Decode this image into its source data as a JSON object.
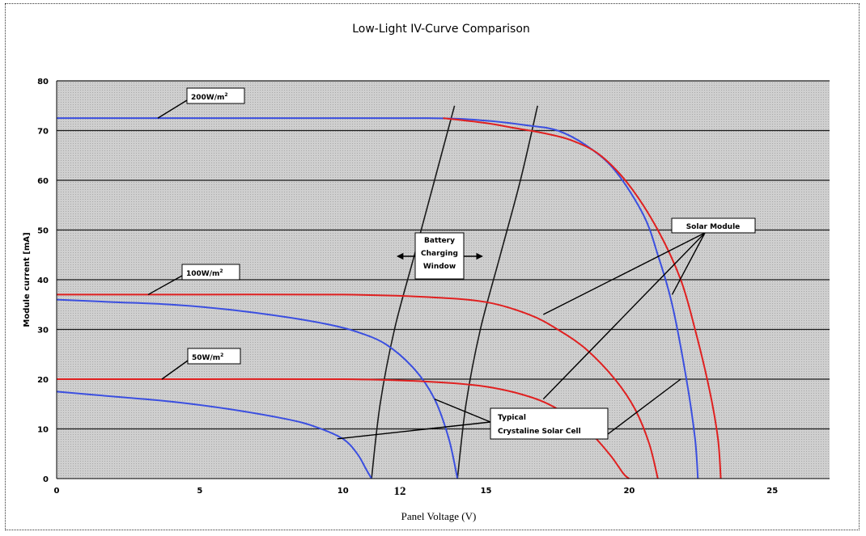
{
  "chart_data": {
    "type": "line",
    "title": "Low-Light IV-Curve Comparison",
    "xlabel": "Panel Voltage (V)",
    "ylabel": "Module current [mA]",
    "xlim": [
      0,
      27
    ],
    "ylim": [
      0,
      80
    ],
    "x_ticks": [
      "0",
      "5",
      "10",
      "15",
      "20",
      "25"
    ],
    "y_ticks": [
      "0",
      "10",
      "20",
      "30",
      "40",
      "50",
      "60",
      "70",
      "80"
    ],
    "extra_x_label": "12",
    "grid": "horizontal",
    "series": [
      {
        "group": "Typical Crystaline Solar Cell",
        "irradiance": "200W/m²",
        "color": "#3b4fe0",
        "points": [
          [
            0,
            72.5
          ],
          [
            8,
            72.5
          ],
          [
            13,
            72.5
          ],
          [
            15,
            72
          ],
          [
            16.5,
            71
          ],
          [
            17.5,
            70
          ],
          [
            18.5,
            67
          ],
          [
            19.5,
            62
          ],
          [
            20.5,
            53
          ],
          [
            21,
            45
          ],
          [
            21.5,
            35
          ],
          [
            22,
            20
          ],
          [
            22.3,
            8
          ],
          [
            22.4,
            0
          ]
        ]
      },
      {
        "group": "Solar Module",
        "irradiance": "200W/m²",
        "color": "#e02020",
        "points": [
          [
            13.5,
            72.5
          ],
          [
            15,
            71.5
          ],
          [
            16,
            70.5
          ],
          [
            17,
            69.5
          ],
          [
            18,
            68
          ],
          [
            19,
            65
          ],
          [
            20,
            59
          ],
          [
            21,
            50
          ],
          [
            21.8,
            40
          ],
          [
            22.3,
            30
          ],
          [
            22.8,
            18
          ],
          [
            23.1,
            8
          ],
          [
            23.2,
            0
          ]
        ]
      },
      {
        "group": "Typical Crystaline Solar Cell",
        "irradiance": "100W/m²",
        "color": "#3b4fe0",
        "points": [
          [
            0,
            36
          ],
          [
            2,
            35.5
          ],
          [
            4,
            35
          ],
          [
            6,
            34
          ],
          [
            8,
            32.5
          ],
          [
            9.5,
            31
          ],
          [
            10.5,
            29.5
          ],
          [
            11.5,
            27
          ],
          [
            12.5,
            22
          ],
          [
            13.2,
            16
          ],
          [
            13.7,
            8
          ],
          [
            14,
            0
          ]
        ]
      },
      {
        "group": "Solar Module",
        "irradiance": "100W/m²",
        "color": "#e02020",
        "points": [
          [
            0,
            37
          ],
          [
            5,
            37
          ],
          [
            10,
            37
          ],
          [
            13,
            36.5
          ],
          [
            15,
            35.5
          ],
          [
            16.5,
            33
          ],
          [
            17.5,
            30
          ],
          [
            18.5,
            26
          ],
          [
            19.5,
            20
          ],
          [
            20.2,
            14
          ],
          [
            20.7,
            7
          ],
          [
            21,
            0
          ]
        ]
      },
      {
        "group": "Typical Crystaline Solar Cell",
        "irradiance": "50W/m²",
        "color": "#3b4fe0",
        "points": [
          [
            0,
            17.5
          ],
          [
            2,
            16.5
          ],
          [
            4,
            15.5
          ],
          [
            6,
            14
          ],
          [
            8,
            12
          ],
          [
            9,
            10.5
          ],
          [
            10,
            8
          ],
          [
            10.5,
            5
          ],
          [
            10.8,
            2
          ],
          [
            11,
            0
          ]
        ]
      },
      {
        "group": "Solar Module",
        "irradiance": "50W/m²",
        "color": "#e02020",
        "points": [
          [
            0,
            20
          ],
          [
            5,
            20
          ],
          [
            10,
            20
          ],
          [
            13,
            19.5
          ],
          [
            15,
            18.5
          ],
          [
            16.5,
            16.5
          ],
          [
            17.5,
            14
          ],
          [
            18.5,
            10
          ],
          [
            19.3,
            5
          ],
          [
            19.8,
            1
          ],
          [
            20,
            0
          ]
        ]
      }
    ],
    "charging_window": [
      {
        "points": [
          [
            11,
            0
          ],
          [
            11.3,
            15
          ],
          [
            11.8,
            30
          ],
          [
            12.5,
            45
          ],
          [
            13.2,
            60
          ],
          [
            13.9,
            75
          ]
        ]
      },
      {
        "points": [
          [
            14,
            0
          ],
          [
            14.3,
            15
          ],
          [
            14.8,
            30
          ],
          [
            15.5,
            45
          ],
          [
            16.2,
            60
          ],
          [
            16.8,
            75
          ]
        ]
      }
    ],
    "annotations": {
      "irr_200": "200W/m",
      "irr_100": "100W/m",
      "irr_50": "50W/m",
      "superscript": "2",
      "solar_module": "Solar Module",
      "typical_line1": "Typical",
      "typical_line2": "Crystaline Solar Cell",
      "battery_line1": "Battery",
      "battery_line2": "Charging",
      "battery_line3": "Window"
    },
    "colors": {
      "plot_bg": "#c8c8c8",
      "grid": "#1a1a1a",
      "cell": "#3b4fe0",
      "module": "#e02020",
      "window": "#1a1a1a"
    }
  }
}
